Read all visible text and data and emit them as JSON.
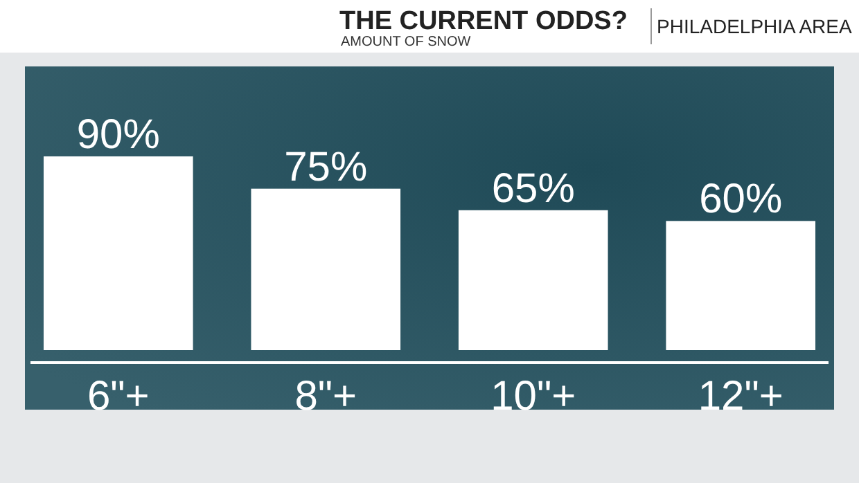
{
  "chart_data": {
    "type": "bar",
    "title": "THE CURRENT ODDS?",
    "subtitle": "AMOUNT OF SNOW",
    "annotations": [
      "PHILADELPHIA AREA"
    ],
    "categories": [
      "6\"+",
      "8\"+",
      "10\"+",
      "12\"+"
    ],
    "values": [
      90,
      75,
      65,
      60
    ],
    "value_labels": [
      "90%",
      "75%",
      "65%",
      "60%"
    ],
    "color": "#ffffff"
  }
}
